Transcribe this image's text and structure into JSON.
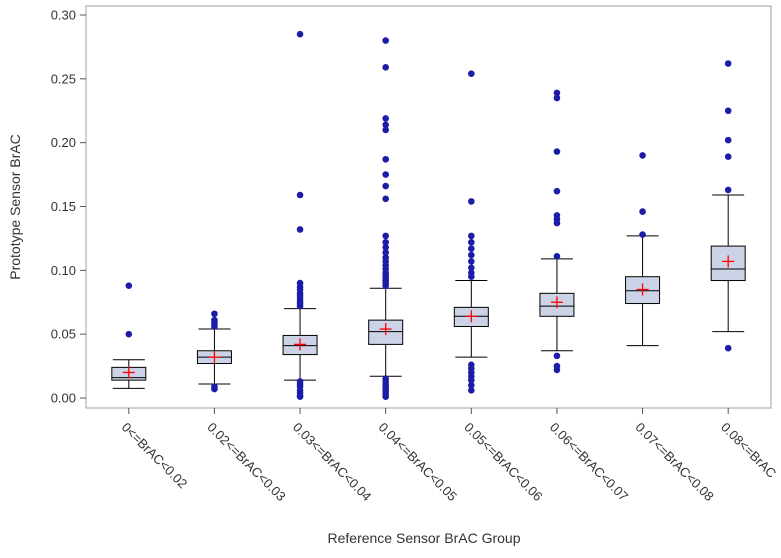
{
  "chart_data": {
    "type": "box",
    "title": "",
    "xlabel": "Reference Sensor BrAC Group",
    "ylabel": "Prototype Sensor BrAC",
    "ylim": [
      -0.01,
      0.305
    ],
    "yticks": [
      "0.00",
      "0.05",
      "0.10",
      "0.15",
      "0.20",
      "0.25",
      "0.30"
    ],
    "grid": false,
    "colors": {
      "box_fill": "#cdd3e6",
      "box_line": "#000000",
      "mean_marker": "#ff0000",
      "outlier": "#1c1ca8",
      "frame": "#a0a0a0"
    },
    "categories": [
      "0<=BrAC<0.02",
      "0.02<=BrAC<0.03",
      "0.03<=BrAC<0.04",
      "0.04<=BrAC<0.05",
      "0.05<=BrAC<0.06",
      "0.06<=BrAC<0.07",
      "0.07<=BrAC<0.08",
      "0.08<=BrAC"
    ],
    "boxes": [
      {
        "whisker_low": 0.0075,
        "q1": 0.014,
        "median": 0.016,
        "q3": 0.024,
        "whisker_high": 0.03,
        "mean": 0.02,
        "outliers": [
          0.05,
          0.088
        ]
      },
      {
        "whisker_low": 0.011,
        "q1": 0.027,
        "median": 0.032,
        "q3": 0.037,
        "whisker_high": 0.054,
        "mean": 0.032,
        "outliers": [
          0.007,
          0.009,
          0.056,
          0.058,
          0.06,
          0.061,
          0.066
        ]
      },
      {
        "whisker_low": 0.014,
        "q1": 0.034,
        "median": 0.041,
        "q3": 0.049,
        "whisker_high": 0.07,
        "mean": 0.042,
        "outliers": [
          0.001,
          0.002,
          0.004,
          0.006,
          0.009,
          0.011,
          0.013,
          0.072,
          0.074,
          0.076,
          0.078,
          0.08,
          0.082,
          0.085,
          0.087,
          0.09,
          0.132,
          0.159,
          0.285
        ]
      },
      {
        "whisker_low": 0.017,
        "q1": 0.042,
        "median": 0.052,
        "q3": 0.061,
        "whisker_high": 0.086,
        "mean": 0.054,
        "outliers": [
          0.001,
          0.003,
          0.005,
          0.007,
          0.009,
          0.011,
          0.013,
          0.015,
          0.088,
          0.09,
          0.092,
          0.094,
          0.096,
          0.098,
          0.101,
          0.104,
          0.107,
          0.11,
          0.114,
          0.118,
          0.122,
          0.127,
          0.156,
          0.166,
          0.175,
          0.187,
          0.21,
          0.214,
          0.219,
          0.259,
          0.28
        ]
      },
      {
        "whisker_low": 0.032,
        "q1": 0.056,
        "median": 0.064,
        "q3": 0.071,
        "whisker_high": 0.092,
        "mean": 0.064,
        "outliers": [
          0.006,
          0.01,
          0.014,
          0.017,
          0.02,
          0.023,
          0.026,
          0.095,
          0.098,
          0.102,
          0.107,
          0.112,
          0.117,
          0.122,
          0.127,
          0.154,
          0.254
        ]
      },
      {
        "whisker_low": 0.037,
        "q1": 0.064,
        "median": 0.072,
        "q3": 0.082,
        "whisker_high": 0.109,
        "mean": 0.075,
        "outliers": [
          0.022,
          0.025,
          0.033,
          0.111,
          0.137,
          0.14,
          0.143,
          0.162,
          0.193,
          0.235,
          0.239
        ]
      },
      {
        "whisker_low": 0.041,
        "q1": 0.074,
        "median": 0.084,
        "q3": 0.095,
        "whisker_high": 0.127,
        "mean": 0.085,
        "outliers": [
          0.128,
          0.146,
          0.19
        ]
      },
      {
        "whisker_low": 0.052,
        "q1": 0.092,
        "median": 0.101,
        "q3": 0.119,
        "whisker_high": 0.159,
        "mean": 0.107,
        "outliers": [
          0.039,
          0.163,
          0.189,
          0.202,
          0.225,
          0.262
        ]
      }
    ]
  }
}
